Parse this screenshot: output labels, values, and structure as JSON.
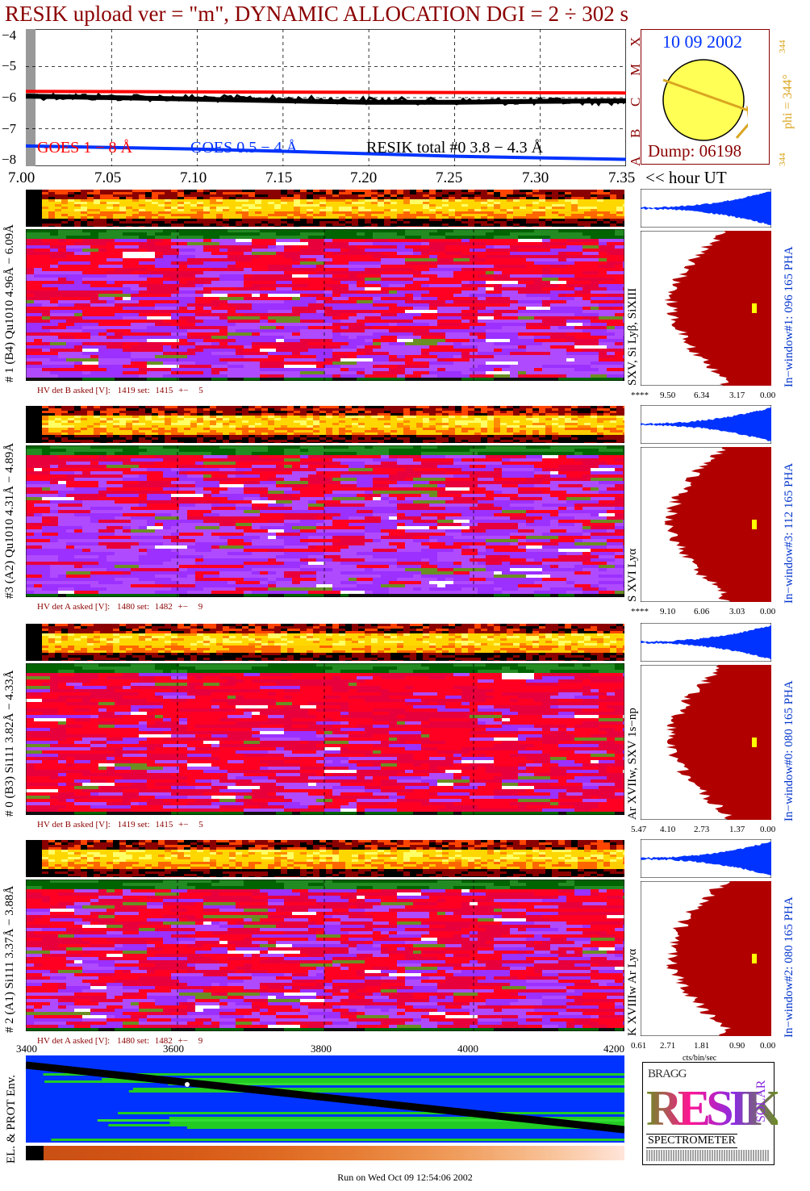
{
  "title": "RESIK upload ver = \"m\", DYNAMIC ALLOCATION  DGI =   2 ÷ 302 s",
  "chart_data": [
    {
      "type": "line",
      "name": "goes-lightcurve",
      "x_ticks": [
        "7.00",
        "7.05",
        "7.10",
        "7.15",
        "7.20",
        "7.25",
        "7.30",
        "7.35"
      ],
      "x_unit": "<< hour UT",
      "y_ticks": [
        "−4",
        "−5",
        "−6",
        "−7",
        "−8"
      ],
      "xlim": [
        7.0,
        7.35
      ],
      "ylim": [
        -8.2,
        -3.8
      ],
      "grid": true,
      "series": [
        {
          "name": "GOES 1 − 8 Å",
          "color": "#ff0000",
          "x": [
            7.0,
            7.35
          ],
          "y": [
            -5.8,
            -5.85
          ]
        },
        {
          "name": "GOES 0.5 − 4 Å",
          "color": "#0033ff",
          "x": [
            7.0,
            7.05,
            7.1,
            7.15,
            7.2,
            7.25,
            7.3,
            7.35
          ],
          "y": [
            -7.55,
            -7.6,
            -7.65,
            -7.72,
            -7.8,
            -7.88,
            -7.93,
            -7.98
          ]
        },
        {
          "name": "RESIK total #0  3.8 − 4.3 Å",
          "color": "#000000",
          "x": [
            7.0,
            7.05,
            7.1,
            7.15,
            7.2,
            7.25,
            7.3,
            7.35
          ],
          "y": [
            -5.95,
            -6.0,
            -6.05,
            -6.1,
            -6.15,
            -6.15,
            -6.12,
            -6.1
          ]
        }
      ],
      "class_labels": [
        "X",
        "M",
        "C",
        "B",
        "A"
      ]
    },
    {
      "type": "heatmap",
      "name": "detector-1",
      "label": "# 1 (B4) Qu1010 4.96Å − 6.09Å",
      "lines": "SXV, Si Lyβ, SiXIII",
      "hv": {
        "label": "HV det B asked [V]:",
        "asked": "1419",
        "set_label": "set:",
        "set": "1415",
        "pm": "+−",
        "tol": "5"
      },
      "pha_window": "In−window#1:  096 165 PHA",
      "pha_ticks": [
        "****",
        "9.50",
        "6.34",
        "3.17",
        "0.00"
      ]
    },
    {
      "type": "heatmap",
      "name": "detector-3",
      "label": "#3 (A2) Qu1010  4.31Å − 4.89Å",
      "lines": "S XVI Lyα",
      "hv": {
        "label": "HV det A asked [V]:",
        "asked": "1480",
        "set_label": "set:",
        "set": "1482",
        "pm": "+−",
        "tol": "9"
      },
      "pha_window": "In−window#3:  112 165 PHA",
      "pha_ticks": [
        "****",
        "9.10",
        "6.06",
        "3.03",
        "0.00"
      ]
    },
    {
      "type": "heatmap",
      "name": "detector-0",
      "label": "# 0 (B3) Si111  3.82Å − 4.33Å",
      "lines": "Ar XVIIw,  SXV 1s−np",
      "hv": {
        "label": "HV det B asked [V]:",
        "asked": "1419",
        "set_label": "set:",
        "set": "1415",
        "pm": "+−",
        "tol": "5"
      },
      "pha_window": "In−window#0:  080 165 PHA",
      "pha_ticks": [
        "5.47",
        "4.10",
        "2.73",
        "1.37",
        "0.00"
      ]
    },
    {
      "type": "heatmap",
      "name": "detector-2",
      "label": "# 2 (A1) Si111  3.37Å − 3.88Å",
      "lines": "K XVIIIw  Ar Lyα",
      "hv": {
        "label": "HV det A asked [V]:",
        "asked": "1480",
        "set_label": "set:",
        "set": "1482",
        "pm": "+−",
        "tol": "9"
      },
      "pha_window": "In−window#2:  080 165 PHA",
      "pha_ticks": [
        "0.61",
        "2.71",
        "1.81",
        "0.90",
        "0.00"
      ],
      "pha_unit": "cts/bin/sec"
    },
    {
      "type": "heatmap",
      "name": "environment",
      "label": "EL. & PROT Env.",
      "x_ticks": [
        "3400",
        "3600",
        "3800",
        "4000",
        "4200"
      ],
      "xlim": [
        3400,
        4200
      ]
    }
  ],
  "sun": {
    "date": "10 09 2002",
    "dump": "Dump: 06198",
    "phi": "phi = 344°",
    "phi_top": "344",
    "phi_bottom": "344"
  },
  "logo": {
    "bragg": "BRAGG",
    "resik": "RESIK",
    "solar": "SOLAR",
    "bottom": "SPECTROMETER"
  },
  "footer": "Run on Wed Oct 09 12:54:06 2002",
  "colors": {
    "title": "#8b0000",
    "goes_long": "#ff0000",
    "goes_short": "#0033ff",
    "pha_fill": "#b00000",
    "pha_blue": "#0033ff",
    "heat_red": "#ff0022",
    "heat_purple": "#9b30ff"
  }
}
